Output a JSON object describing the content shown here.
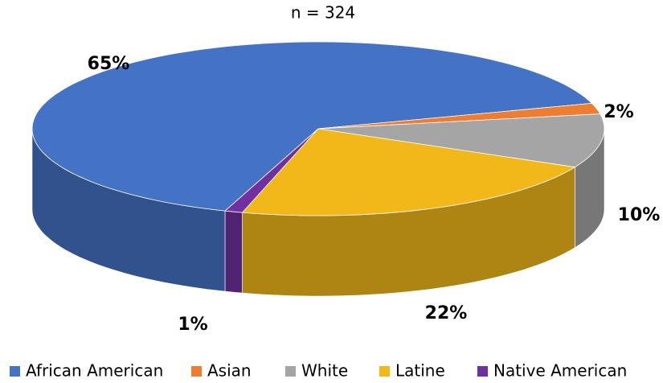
{
  "chart_data": {
    "type": "pie",
    "title": "n = 324",
    "categories": [
      "African American",
      "Asian",
      "White",
      "Latine",
      "Native American"
    ],
    "values": [
      65,
      2,
      10,
      22,
      1
    ],
    "value_labels": [
      "65%",
      "2%",
      "10%",
      "22%",
      "1%"
    ],
    "colors": [
      "#4472c4",
      "#ed7d31",
      "#a5a5a5",
      "#f2b81a",
      "#7030a0"
    ],
    "legend": "bottom"
  }
}
